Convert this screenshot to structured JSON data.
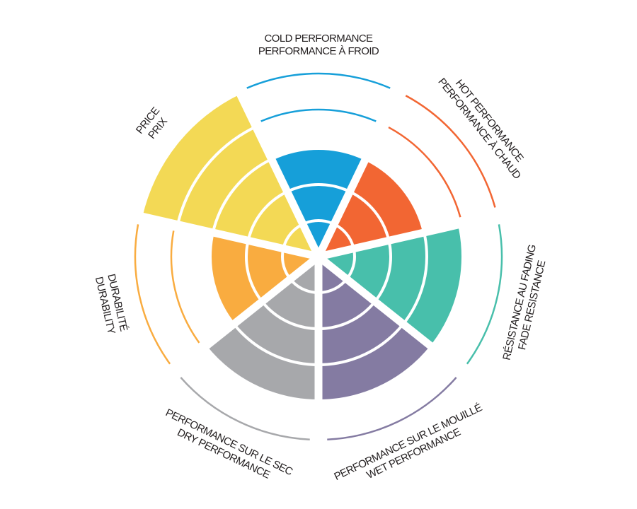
{
  "chart_data": {
    "type": "polar-area",
    "scale_max": 5,
    "grid": true,
    "categories": [
      {
        "label_line1": "COLD PERFORMANCE",
        "label_line2": "PERFORMANCE À FROID",
        "value": 3,
        "color": "#169fd9"
      },
      {
        "label_line1": "HOT PERFORMANCE",
        "label_line2": "PERFORMANCE À CHAUD",
        "value": 3,
        "color": "#f26633"
      },
      {
        "label_line1": "RÉSISTANCE AU FADING",
        "label_line2": "FADE RESISTANCE",
        "value": 4,
        "color": "#48bfab"
      },
      {
        "label_line1": "PERFORMANCE SUR LE MOUILLÉ",
        "label_line2": "WET PERFORMANCE",
        "value": 4,
        "color": "#847ba2"
      },
      {
        "label_line1": "PERFORMANCE SUR LE SEC",
        "label_line2": "DRY PERFORMANCE",
        "value": 4,
        "color": "#a7a8ab"
      },
      {
        "label_line1": "DURABILITÉ",
        "label_line2": "DURABILITY",
        "value": 3,
        "color": "#f9ac40"
      },
      {
        "label_line1": "PRICE",
        "label_line2": "PRIX",
        "value": 5,
        "color": "#f3d955"
      }
    ]
  }
}
